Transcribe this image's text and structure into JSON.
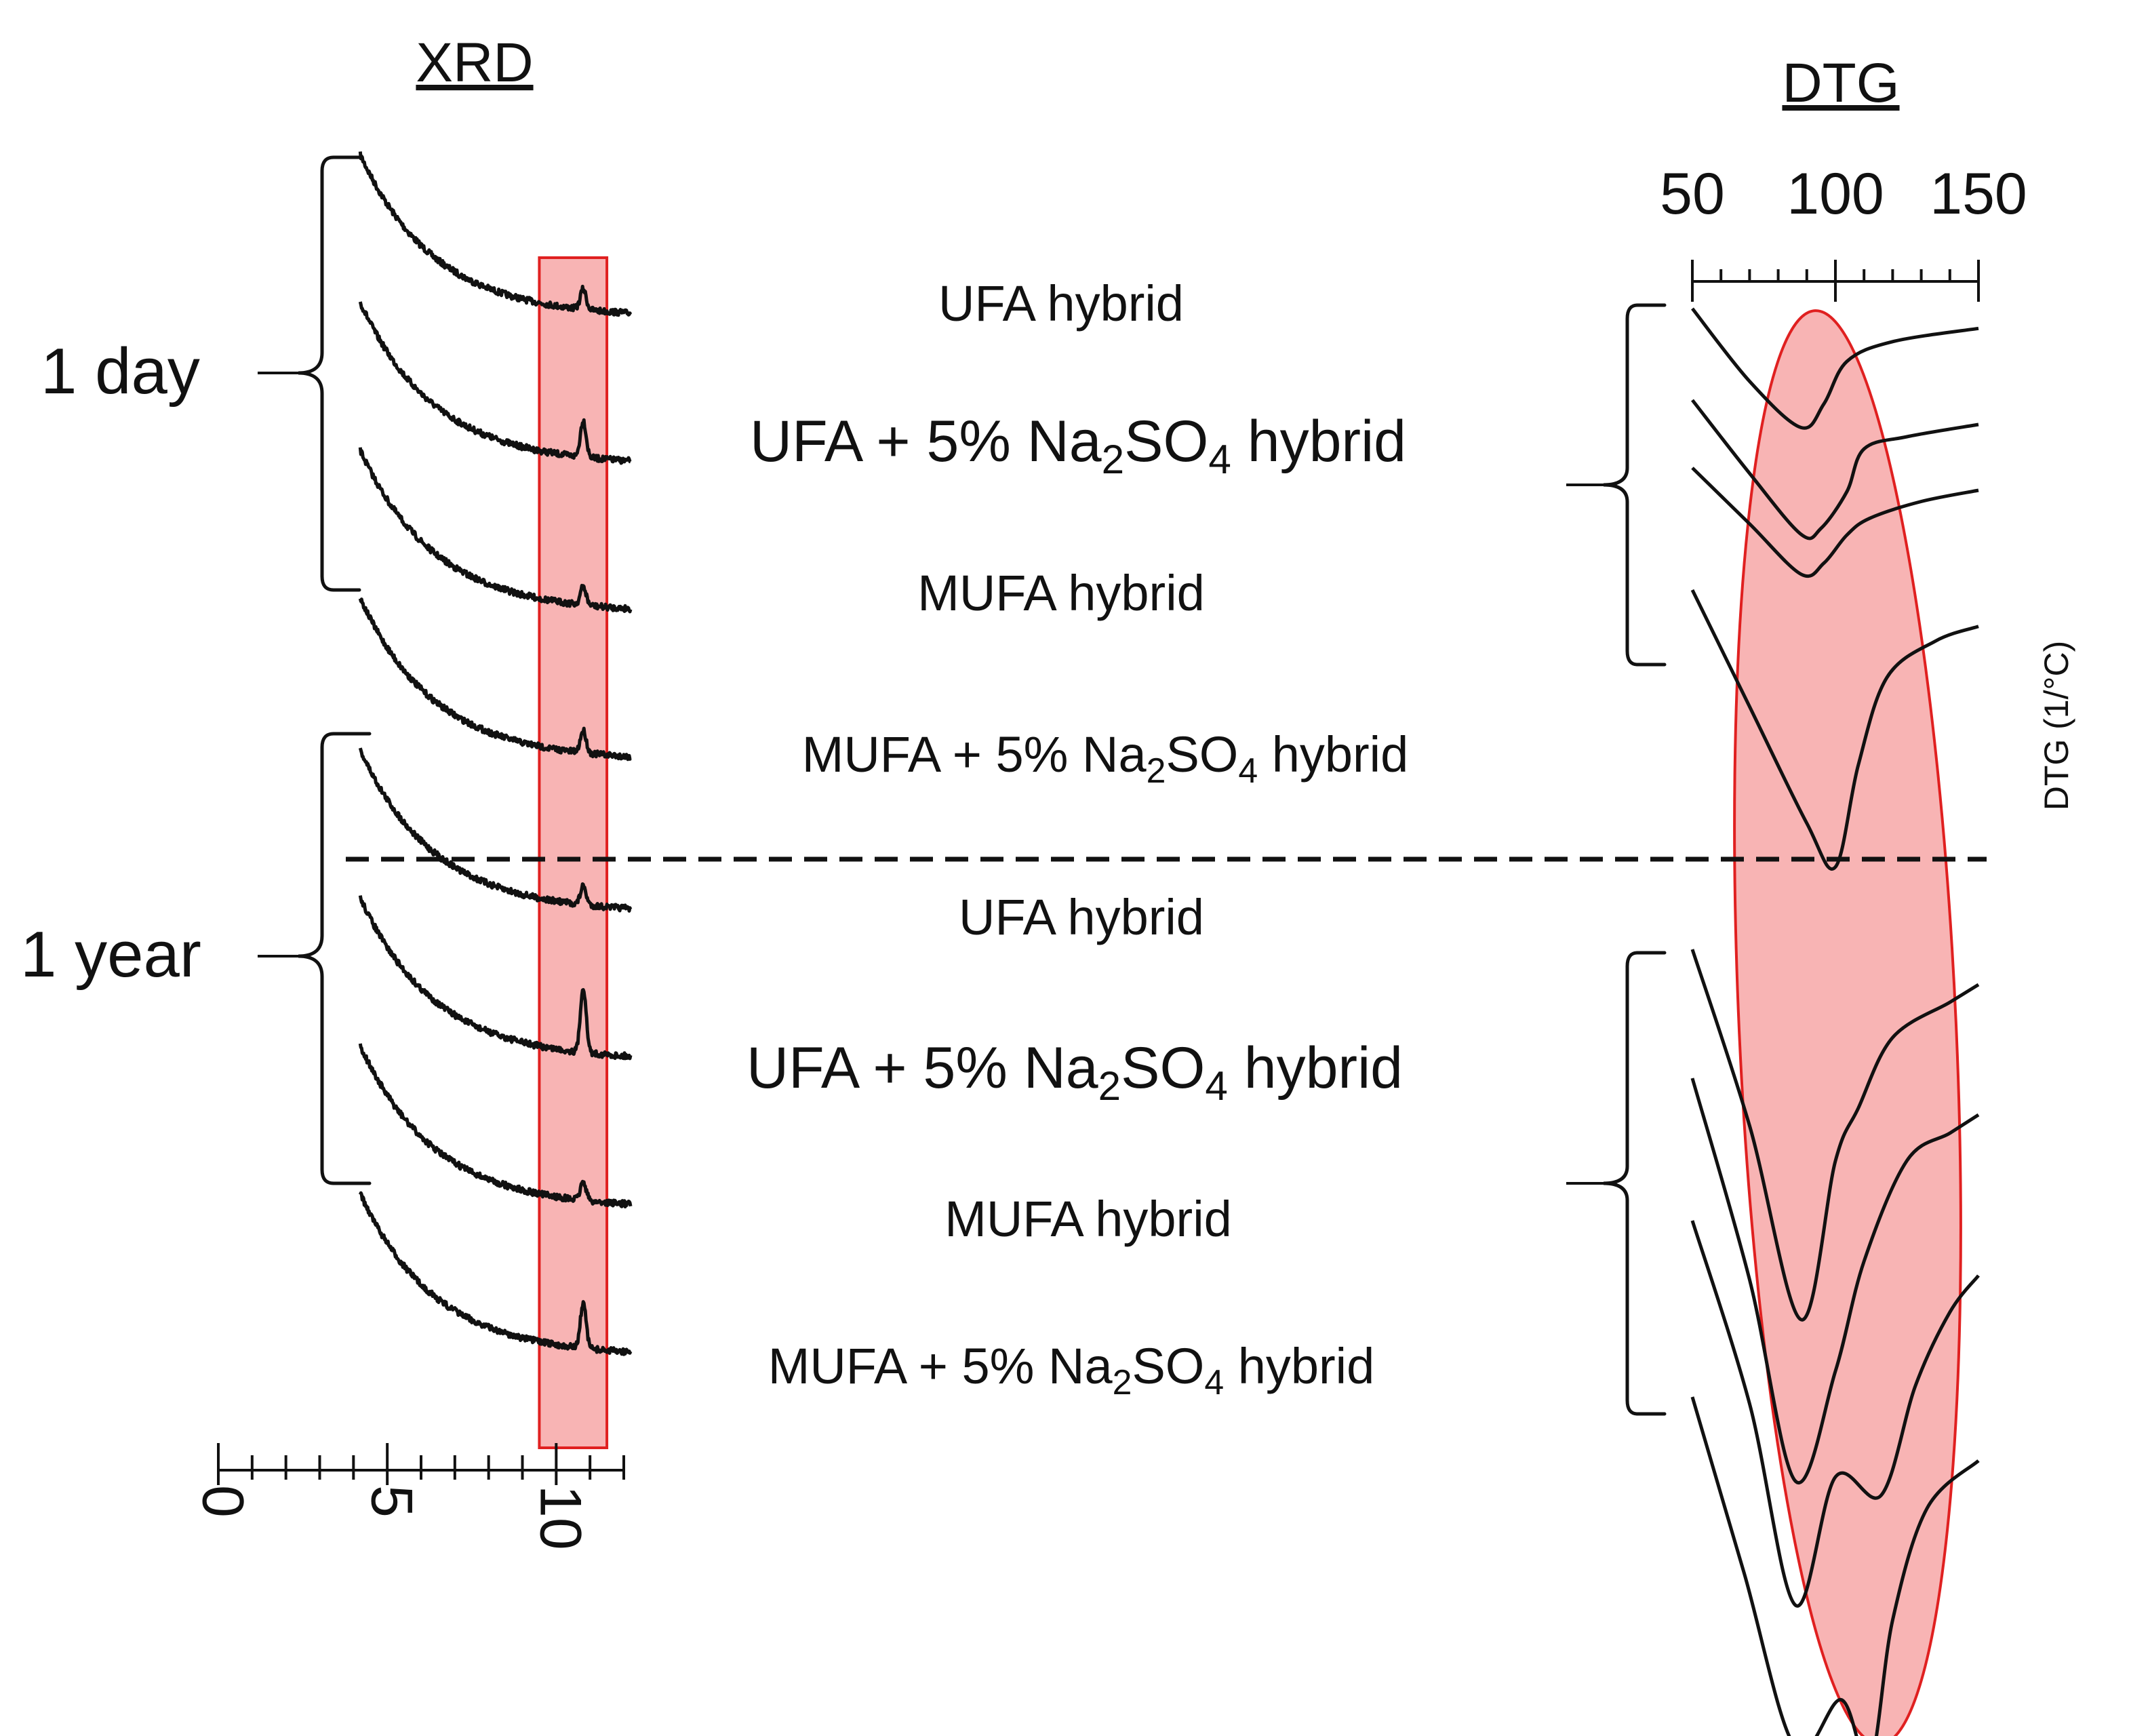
{
  "chart_data": {
    "type": "line",
    "panels": [
      {
        "id": "xrd",
        "title": "XRD",
        "xlim": [
          0,
          12
        ],
        "x_ticks": [
          "0",
          "5",
          "10"
        ],
        "x_tick_values": [
          0,
          5,
          10
        ],
        "highlight_range": [
          9.5,
          11.5
        ],
        "series": [
          {
            "name": "1 day UFA hybrid",
            "peak_height": 0.5
          },
          {
            "name": "1 day UFA + 5% Na2SO4 hybrid",
            "peak_height": 0.9
          },
          {
            "name": "1 day MUFA hybrid",
            "peak_height": 0.45
          },
          {
            "name": "1 day MUFA + 5% Na2SO4 hybrid",
            "peak_height": 0.55
          },
          {
            "name": "1 year UFA hybrid",
            "peak_height": 0.45
          },
          {
            "name": "1 year UFA + 5% Na2SO4 hybrid",
            "peak_height": 1.6
          },
          {
            "name": "1 year MUFA hybrid",
            "peak_height": 0.45
          },
          {
            "name": "1 year MUFA + 5% Na2SO4 hybrid",
            "peak_height": 1.1
          }
        ]
      },
      {
        "id": "dtg",
        "title": "DTG",
        "xlim": [
          50,
          150
        ],
        "x_ticks": [
          "50",
          "100",
          "150"
        ],
        "x_tick_values": [
          50,
          100,
          150
        ],
        "ylabel": "DTG (1/°C)",
        "series": [
          {
            "name": "1 day UFA hybrid",
            "x": [
              50,
              70,
              88,
              96,
              104,
              120,
              150
            ],
            "y": [
              0,
              -0.55,
              -0.9,
              -0.72,
              -0.4,
              -0.25,
              -0.15
            ]
          },
          {
            "name": "1 day UFA + 5% Na2SO4 hybrid",
            "x": [
              50,
              70,
              88,
              95,
              104,
              110,
              125,
              150
            ],
            "y": [
              0,
              -0.6,
              -1.1,
              -1.05,
              -0.75,
              -0.4,
              -0.3,
              -0.2
            ]
          },
          {
            "name": "1 day MUFA hybrid",
            "x": [
              50,
              70,
              88,
              96,
              104,
              112,
              130,
              150
            ],
            "y": [
              0,
              -0.5,
              -0.95,
              -0.85,
              -0.6,
              -0.45,
              -0.3,
              -0.2
            ]
          },
          {
            "name": "1 day MUFA + 5% Na2SO4 hybrid",
            "x": [
              50,
              70,
              90,
              100,
              108,
              118,
              135,
              150
            ],
            "y": [
              0,
              -0.8,
              -1.6,
              -1.9,
              -1.2,
              -0.6,
              -0.35,
              -0.25
            ]
          },
          {
            "name": "1 year UFA hybrid",
            "x": [
              50,
              70,
              88,
              100,
              108,
              120,
              140,
              150
            ],
            "y": [
              0,
              -1.0,
              -2.1,
              -1.2,
              -0.9,
              -0.5,
              -0.3,
              -0.2
            ]
          },
          {
            "name": "1 year UFA + 5% Na2SO4 hybrid",
            "x": [
              50,
              70,
              86,
              100,
              110,
              125,
              140,
              150
            ],
            "y": [
              0,
              -1.1,
              -2.2,
              -1.6,
              -1.0,
              -0.45,
              -0.3,
              -0.2
            ]
          },
          {
            "name": "1 year MUFA hybrid",
            "x": [
              50,
              70,
              86,
              100,
              116,
              128,
              140,
              150
            ],
            "y": [
              0,
              -1.0,
              -2.1,
              -1.4,
              -1.5,
              -0.9,
              -0.5,
              -0.3
            ]
          },
          {
            "name": "1 year MUFA + 5% Na2SO4 hybrid",
            "x": [
              50,
              68,
              86,
              102,
              112,
              120,
              132,
              150
            ],
            "y": [
              0,
              -1.1,
              -2.2,
              -1.9,
              -2.3,
              -1.4,
              -0.7,
              -0.4
            ]
          }
        ]
      }
    ],
    "group_labels": [
      "1 day",
      "1 year"
    ],
    "sample_labels": [
      "UFA hybrid",
      "UFA + 5% Na2SO4 hybrid",
      "MUFA hybrid",
      "MUFA + 5% Na2SO4 hybrid"
    ],
    "highlight_color": "#f8b4b4",
    "highlight_stroke": "#e02020"
  },
  "labels": {
    "xrd_title": "XRD",
    "dtg_title": "DTG",
    "one_day": "1 day",
    "one_year": "1 year",
    "dtg_ylabel": "DTG (1/°C)",
    "ufa": "UFA hybrid",
    "mufa": "MUFA hybrid",
    "ufa_na_prefix": "UFA + 5% Na",
    "mufa_na_prefix": "MUFA + 5% Na",
    "na_sub": "2",
    "so": "SO",
    "so_sub": "4",
    "hybrid_suffix": " hybrid"
  }
}
